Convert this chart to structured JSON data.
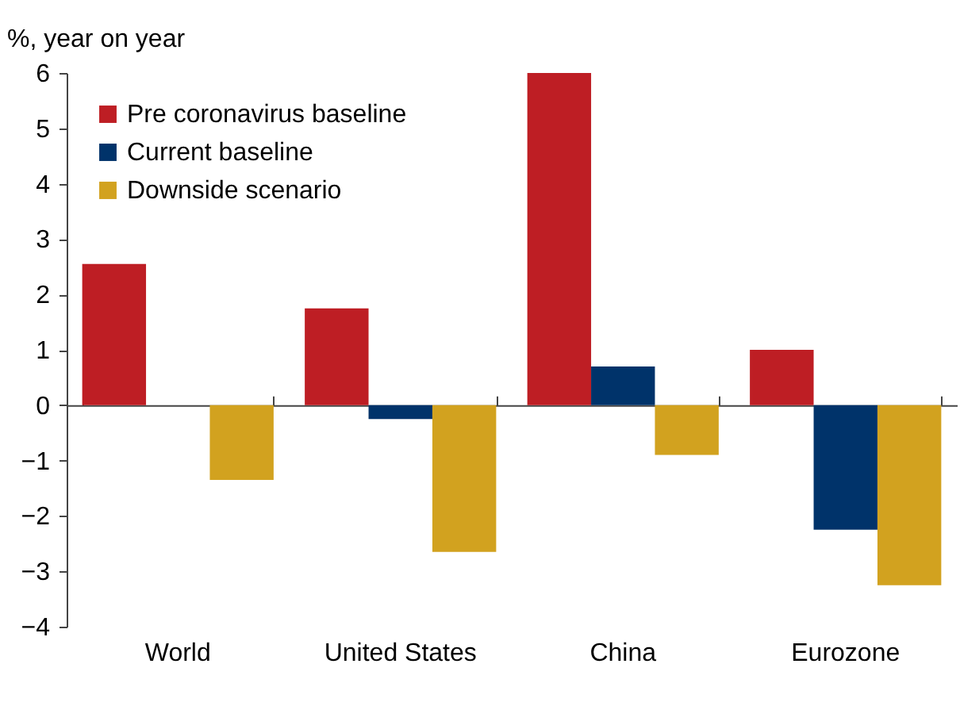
{
  "chart_data": {
    "type": "bar",
    "ylabel": "%, year on year",
    "categories": [
      "World",
      "United States",
      "China",
      "Eurozone"
    ],
    "series": [
      {
        "name": "Pre coronavirus baseline",
        "color": "#be1e24",
        "values": [
          2.55,
          1.75,
          6.0,
          1.0
        ]
      },
      {
        "name": "Current baseline",
        "color": "#00336a",
        "values": [
          0.0,
          -0.25,
          0.7,
          -2.25
        ]
      },
      {
        "name": "Downside scenario",
        "color": "#d2a21f",
        "values": [
          -1.35,
          -2.65,
          -0.9,
          -3.25
        ]
      }
    ],
    "ylim": [
      -4,
      6
    ],
    "yticks": [
      -4,
      -3,
      -2,
      -1,
      0,
      1,
      2,
      3,
      4,
      5,
      6
    ],
    "legend": "top left"
  }
}
